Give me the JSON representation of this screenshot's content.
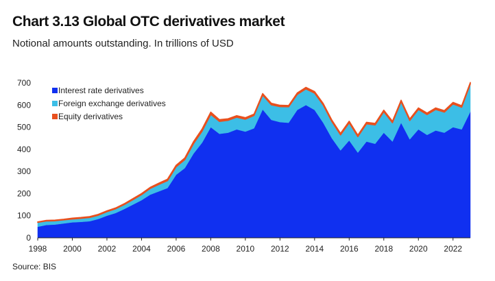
{
  "title": "Chart 3.13 Global OTC derivatives market",
  "subtitle": "Notional amounts outstanding. In trillions of USD",
  "source": "Source: BIS",
  "chart_data": {
    "type": "area",
    "stacked": true,
    "title": "Chart 3.13 Global OTC derivatives market",
    "subtitle": "Notional amounts outstanding. In trillions of USD",
    "xlabel": "",
    "ylabel": "",
    "ylim": [
      0,
      700
    ],
    "xlim": [
      1998,
      2023
    ],
    "yticks": [
      0,
      100,
      200,
      300,
      400,
      500,
      600,
      700
    ],
    "xticks": [
      1998,
      2000,
      2002,
      2004,
      2006,
      2008,
      2010,
      2012,
      2014,
      2016,
      2018,
      2020,
      2022
    ],
    "grid": false,
    "legend_position": "top-left",
    "x": [
      1998.0,
      1998.5,
      1999.0,
      1999.5,
      2000.0,
      2000.5,
      2001.0,
      2001.5,
      2002.0,
      2002.5,
      2003.0,
      2003.5,
      2004.0,
      2004.5,
      2005.0,
      2005.5,
      2006.0,
      2006.5,
      2007.0,
      2007.5,
      2008.0,
      2008.5,
      2009.0,
      2009.5,
      2010.0,
      2010.5,
      2011.0,
      2011.5,
      2012.0,
      2012.5,
      2013.0,
      2013.5,
      2014.0,
      2014.5,
      2015.0,
      2015.5,
      2016.0,
      2016.5,
      2017.0,
      2017.5,
      2018.0,
      2018.5,
      2019.0,
      2019.5,
      2020.0,
      2020.5,
      2021.0,
      2021.5,
      2022.0,
      2022.5,
      2023.0
    ],
    "series": [
      {
        "name": "Interest rate derivatives",
        "color": "#1030f0",
        "values": [
          50,
          58,
          60,
          65,
          70,
          72,
          75,
          85,
          100,
          112,
          130,
          150,
          170,
          195,
          210,
          225,
          285,
          315,
          380,
          430,
          500,
          470,
          475,
          490,
          480,
          495,
          580,
          533,
          523,
          520,
          578,
          600,
          578,
          520,
          450,
          395,
          440,
          385,
          435,
          425,
          475,
          435,
          520,
          445,
          490,
          465,
          485,
          475,
          500,
          490,
          570
        ]
      },
      {
        "name": "Foreign exchange derivatives",
        "color": "#3cbee6",
        "values": [
          20,
          18,
          17,
          16,
          15,
          16,
          17,
          17,
          18,
          19,
          20,
          22,
          25,
          28,
          31,
          33,
          36,
          38,
          45,
          52,
          58,
          56,
          56,
          55,
          56,
          58,
          65,
          68,
          70,
          72,
          70,
          73,
          76,
          80,
          75,
          70,
          80,
          72,
          80,
          85,
          95,
          85,
          95,
          85,
          90,
          92,
          95,
          93,
          105,
          100,
          125
        ]
      },
      {
        "name": "Equity derivatives",
        "color": "#e8501e",
        "values": [
          2,
          3,
          3,
          3,
          4,
          4,
          4,
          4,
          4,
          4,
          4,
          5,
          5,
          5,
          6,
          7,
          7,
          8,
          9,
          10,
          10,
          8,
          7,
          7,
          7,
          6,
          7,
          7,
          6,
          6,
          7,
          7,
          7,
          7,
          7,
          7,
          7,
          7,
          7,
          7,
          7,
          7,
          7,
          7,
          7,
          7,
          7,
          7,
          7,
          7,
          7
        ]
      }
    ]
  }
}
